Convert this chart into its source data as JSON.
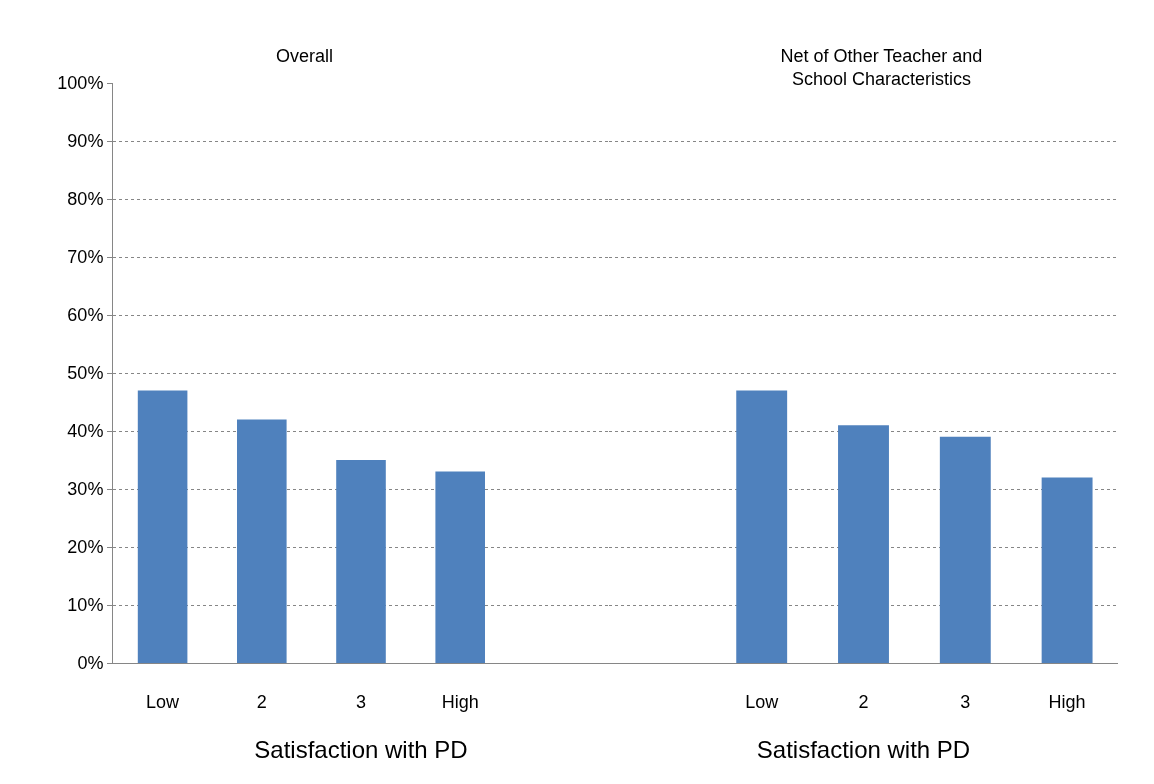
{
  "chart_data": [
    {
      "type": "bar",
      "title": "Overall",
      "xlabel": "Satisfaction with PD",
      "categories": [
        "Low",
        "2",
        "3",
        "High",
        null
      ],
      "values": [
        47,
        42,
        35,
        33,
        null
      ],
      "color": "#4f81bd",
      "ylim": [
        0,
        100
      ],
      "yticks": [
        {
          "value": 0,
          "label": "0%"
        },
        {
          "value": 10,
          "label": "10%"
        },
        {
          "value": 20,
          "label": "20%"
        },
        {
          "value": 30,
          "label": "30%"
        },
        {
          "value": 40,
          "label": "40%"
        },
        {
          "value": 50,
          "label": "50%"
        },
        {
          "value": 60,
          "label": "60%"
        },
        {
          "value": 70,
          "label": "70%"
        },
        {
          "value": 80,
          "label": "80%"
        },
        {
          "value": 90,
          "label": "90%"
        },
        {
          "value": 100,
          "label": "100%"
        }
      ],
      "grid": "y"
    },
    {
      "type": "bar",
      "title": "Net of Other Teacher and School Characteristics",
      "xlabel": "Satisfaction with PD",
      "categories": [
        null,
        "Low",
        "2",
        "3",
        "High"
      ],
      "values": [
        null,
        47,
        41,
        39,
        32
      ],
      "color": "#4f81bd",
      "ylim": [
        0,
        100
      ],
      "yticks": [
        {
          "value": 0,
          "label": null
        },
        {
          "value": 10,
          "label": null
        },
        {
          "value": 20,
          "label": null
        },
        {
          "value": 30,
          "label": null
        },
        {
          "value": 40,
          "label": null
        },
        {
          "value": 50,
          "label": null
        },
        {
          "value": 60,
          "label": null
        },
        {
          "value": 70,
          "label": null
        },
        {
          "value": 80,
          "label": null
        },
        {
          "value": 90,
          "label": null
        },
        {
          "value": 100,
          "label": null
        }
      ],
      "grid": "y",
      "tick_labels": "x"
    }
  ]
}
